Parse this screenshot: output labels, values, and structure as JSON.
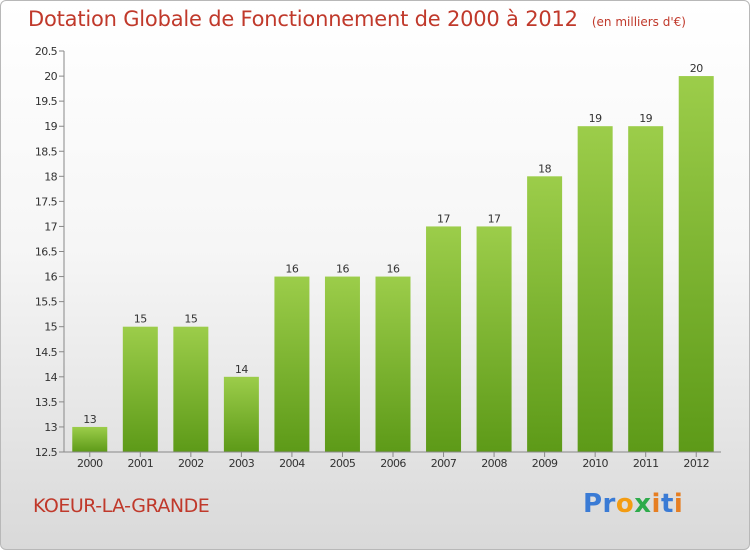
{
  "header": {
    "title": "Dotation Globale de Fonctionnement de 2000 à 2012",
    "unit": "(en milliers d'€)"
  },
  "footer": {
    "commune": "KOEUR-LA-GRANDE",
    "logo": "Proxiti"
  },
  "colors": {
    "title": "#c0392b",
    "bar_top": "#9ccd4a",
    "bar_bottom": "#5d9a18"
  },
  "chart_data": {
    "type": "bar",
    "title": "Dotation Globale de Fonctionnement de 2000 à 2012",
    "subtitle": "(en milliers d'€)",
    "xlabel": "",
    "ylabel": "",
    "categories": [
      "2000",
      "2001",
      "2002",
      "2003",
      "2004",
      "2005",
      "2006",
      "2007",
      "2008",
      "2009",
      "2010",
      "2011",
      "2012"
    ],
    "values": [
      13,
      15,
      15,
      14,
      16,
      16,
      16,
      17,
      17,
      18,
      19,
      19,
      20
    ],
    "value_labels": [
      "13",
      "15",
      "15",
      "14",
      "16",
      "16",
      "16",
      "17",
      "17",
      "18",
      "19",
      "19",
      "20"
    ],
    "ylim": [
      12.5,
      20.5
    ],
    "yticks": [
      12.5,
      13,
      13.5,
      14,
      14.5,
      15,
      15.5,
      16,
      16.5,
      17,
      17.5,
      18,
      18.5,
      19,
      19.5,
      20,
      20.5
    ],
    "ytick_labels": [
      "12.5",
      "13",
      "13.5",
      "14",
      "14.5",
      "15",
      "15.5",
      "16",
      "16.5",
      "17",
      "17.5",
      "18",
      "18.5",
      "19",
      "19.5",
      "20",
      "20.5"
    ],
    "grid": false,
    "legend": "none"
  }
}
